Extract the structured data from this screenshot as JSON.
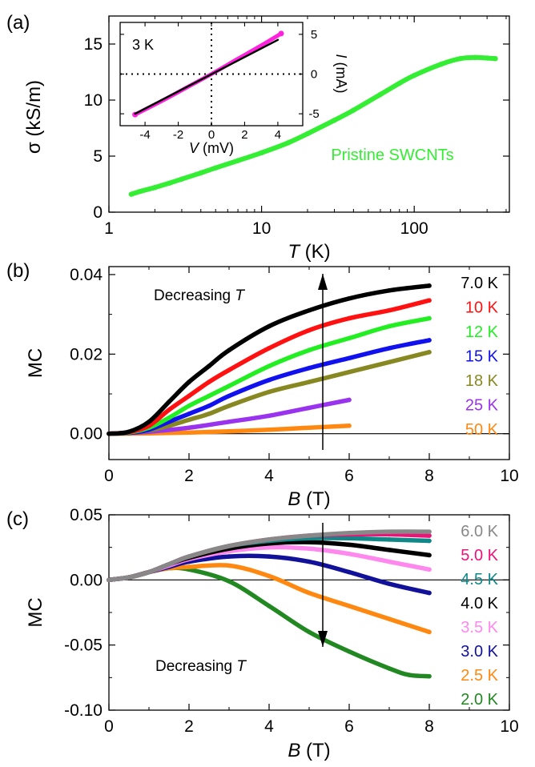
{
  "chart_data": [
    {
      "panel_label": "(a)",
      "type": "line",
      "xlabel_italic": "T",
      "xlabel_unit": "(K)",
      "ylabel": "σ (kS/m)",
      "x_scale": "log",
      "xlim": [
        1,
        420
      ],
      "ylim": [
        0,
        17.5
      ],
      "xticks": [
        1,
        10,
        100
      ],
      "xtick_labels": [
        "1",
        "10",
        "100"
      ],
      "yticks": [
        0,
        5,
        10,
        15
      ],
      "ytick_labels": [
        "0",
        "5",
        "10",
        "15"
      ],
      "series": [
        {
          "name": "Pristine SWCNTs",
          "color": "#33ee33",
          "x": [
            1.4,
            1.6,
            2,
            2.5,
            3,
            4,
            5,
            7,
            10,
            15,
            20,
            30,
            40,
            60,
            80,
            100,
            150,
            200,
            250,
            300,
            340
          ],
          "y": [
            1.6,
            1.85,
            2.2,
            2.6,
            2.95,
            3.5,
            3.95,
            4.6,
            5.3,
            6.2,
            7.0,
            8.2,
            9.1,
            10.5,
            11.5,
            12.2,
            13.2,
            13.7,
            13.8,
            13.75,
            13.7
          ]
        }
      ],
      "inset": {
        "annotation": "3 K",
        "xlabel_italic": "V",
        "xlabel_unit": "(mV)",
        "ylabel_italic": "I",
        "ylabel_unit": "(mA)",
        "xlim": [
          -5.5,
          5.5
        ],
        "ylim": [
          -6.5,
          6.5
        ],
        "xticks": [
          -4,
          -2,
          0,
          2,
          4
        ],
        "xtick_labels": [
          "-4",
          "-2",
          "0",
          "2",
          "4"
        ],
        "yticks": [
          -5,
          0,
          5
        ],
        "ytick_labels": [
          "-5",
          "0",
          "5"
        ],
        "series": [
          {
            "color": "#ff22dd",
            "x": [
              -4.6,
              -3,
              -1.5,
              0,
              1.5,
              3,
              4.2
            ],
            "y": [
              -5.1,
              -3.4,
              -1.7,
              0,
              1.8,
              3.6,
              5.1
            ]
          },
          {
            "color": "#000000",
            "x": [
              -4.6,
              4.0
            ],
            "y": [
              -5.0,
              4.3
            ]
          }
        ]
      }
    },
    {
      "panel_label": "(b)",
      "type": "scatter",
      "xlabel_italic": "B",
      "xlabel_unit": "(T)",
      "ylabel": "MC",
      "xlim": [
        0,
        10
      ],
      "ylim": [
        -0.0065,
        0.042
      ],
      "xticks": [
        0,
        2,
        4,
        6,
        8,
        10
      ],
      "xtick_labels": [
        "0",
        "2",
        "4",
        "6",
        "8",
        "10"
      ],
      "yticks": [
        0,
        0.02,
        0.04
      ],
      "ytick_labels": [
        "0.00",
        "0.02",
        "0.04"
      ],
      "annotation": "Decreasing",
      "annotation_italic": "T",
      "series": [
        {
          "name": "7.0 K",
          "color": "#000000",
          "x": [
            0,
            0.5,
            1,
            1.5,
            2,
            2.5,
            3,
            4,
            5,
            6,
            7,
            8
          ],
          "y": [
            0,
            0.0005,
            0.003,
            0.008,
            0.013,
            0.017,
            0.021,
            0.027,
            0.031,
            0.034,
            0.036,
            0.0372
          ]
        },
        {
          "name": "10 K",
          "color": "#ff1111",
          "x": [
            0,
            0.5,
            1,
            1.5,
            2,
            2.5,
            3,
            4,
            5,
            6,
            7,
            8
          ],
          "y": [
            0,
            0.0004,
            0.002,
            0.006,
            0.0095,
            0.013,
            0.016,
            0.0215,
            0.026,
            0.029,
            0.031,
            0.0335
          ]
        },
        {
          "name": "12 K",
          "color": "#22ee22",
          "x": [
            0,
            0.5,
            1,
            1.5,
            2,
            2.5,
            3,
            4,
            5,
            6,
            7,
            8
          ],
          "y": [
            0,
            0.0003,
            0.0015,
            0.004,
            0.007,
            0.0095,
            0.012,
            0.017,
            0.021,
            0.024,
            0.027,
            0.029
          ]
        },
        {
          "name": "15 K",
          "color": "#1111ee",
          "x": [
            0,
            0.5,
            1,
            1.5,
            2,
            2.5,
            3,
            4,
            5,
            6,
            7,
            8
          ],
          "y": [
            0,
            0.0002,
            0.001,
            0.003,
            0.005,
            0.007,
            0.0095,
            0.0135,
            0.0165,
            0.019,
            0.0215,
            0.0235
          ]
        },
        {
          "name": "18 K",
          "color": "#888822",
          "x": [
            0,
            0.5,
            1,
            1.5,
            2,
            2.5,
            3,
            4,
            5,
            6,
            7,
            8
          ],
          "y": [
            0,
            0.0002,
            0.0008,
            0.002,
            0.0035,
            0.005,
            0.007,
            0.0105,
            0.013,
            0.0155,
            0.018,
            0.0205
          ]
        },
        {
          "name": "25 K",
          "color": "#9933ee",
          "x": [
            0,
            1,
            2,
            3,
            4,
            5,
            6
          ],
          "y": [
            0,
            0.0005,
            0.0015,
            0.003,
            0.0045,
            0.0065,
            0.0085
          ]
        },
        {
          "name": "50 K",
          "color": "#ff8811",
          "x": [
            0,
            1,
            2,
            3,
            4,
            5,
            6
          ],
          "y": [
            0,
            0.0001,
            0.0003,
            0.0006,
            0.001,
            0.0015,
            0.002
          ]
        }
      ]
    },
    {
      "panel_label": "(c)",
      "type": "scatter",
      "xlabel_italic": "B",
      "xlabel_unit": "(T)",
      "ylabel": "MC",
      "xlim": [
        0,
        10
      ],
      "ylim": [
        -0.1,
        0.05
      ],
      "xticks": [
        0,
        2,
        4,
        6,
        8,
        10
      ],
      "xtick_labels": [
        "0",
        "2",
        "4",
        "6",
        "8",
        "10"
      ],
      "yticks": [
        -0.1,
        -0.05,
        0,
        0.05
      ],
      "ytick_labels": [
        "-0.10",
        "-0.05",
        "0.00",
        "0.05"
      ],
      "annotation": "Decreasing",
      "annotation_italic": "T",
      "series": [
        {
          "name": "6.0 K",
          "color": "#888888",
          "x": [
            0,
            0.5,
            1,
            1.5,
            2,
            3,
            4,
            5,
            6,
            7,
            8
          ],
          "y": [
            0,
            0.002,
            0.006,
            0.012,
            0.018,
            0.026,
            0.031,
            0.034,
            0.036,
            0.037,
            0.037
          ]
        },
        {
          "name": "5.0 K",
          "color": "#ee1177",
          "x": [
            0,
            0.5,
            1,
            1.5,
            2,
            3,
            4,
            5,
            6,
            7,
            8
          ],
          "y": [
            0,
            0.002,
            0.006,
            0.012,
            0.018,
            0.026,
            0.031,
            0.034,
            0.035,
            0.035,
            0.034
          ]
        },
        {
          "name": "4.5 K",
          "color": "#118888",
          "x": [
            0,
            0.5,
            1,
            1.5,
            2,
            3,
            4,
            5,
            6,
            7,
            8
          ],
          "y": [
            0,
            0.002,
            0.006,
            0.012,
            0.018,
            0.026,
            0.03,
            0.032,
            0.032,
            0.031,
            0.03
          ]
        },
        {
          "name": "4.0 K",
          "color": "#000000",
          "x": [
            0,
            0.5,
            1,
            1.5,
            2,
            3,
            4,
            5,
            6,
            7,
            8
          ],
          "y": [
            0,
            0.002,
            0.006,
            0.012,
            0.017,
            0.024,
            0.028,
            0.029,
            0.027,
            0.023,
            0.019
          ]
        },
        {
          "name": "3.5 K",
          "color": "#ff88ee",
          "x": [
            0,
            0.5,
            1,
            1.5,
            2,
            3,
            4,
            5,
            6,
            7,
            8
          ],
          "y": [
            0,
            0.002,
            0.006,
            0.011,
            0.016,
            0.022,
            0.025,
            0.024,
            0.02,
            0.014,
            0.008
          ]
        },
        {
          "name": "3.0 K",
          "color": "#111199",
          "x": [
            0,
            0.5,
            1,
            1.5,
            2,
            3,
            4,
            5,
            6,
            7,
            8
          ],
          "y": [
            0,
            0.002,
            0.006,
            0.01,
            0.014,
            0.018,
            0.018,
            0.014,
            0.006,
            -0.003,
            -0.01
          ]
        },
        {
          "name": "2.5 K",
          "color": "#ff8811",
          "x": [
            0,
            0.5,
            1,
            1.5,
            2,
            3,
            4,
            5,
            6,
            7,
            8
          ],
          "y": [
            0,
            0.002,
            0.006,
            0.009,
            0.01,
            0.011,
            0.003,
            -0.01,
            -0.02,
            -0.03,
            -0.04
          ]
        },
        {
          "name": "2.0 K",
          "color": "#228822",
          "x": [
            0,
            0.5,
            1,
            1.5,
            2,
            3,
            4,
            5,
            6,
            7,
            7.5,
            8
          ],
          "y": [
            0,
            0.002,
            0.006,
            0.009,
            0.008,
            -0.001,
            -0.02,
            -0.04,
            -0.055,
            -0.068,
            -0.073,
            -0.074
          ]
        }
      ]
    }
  ]
}
